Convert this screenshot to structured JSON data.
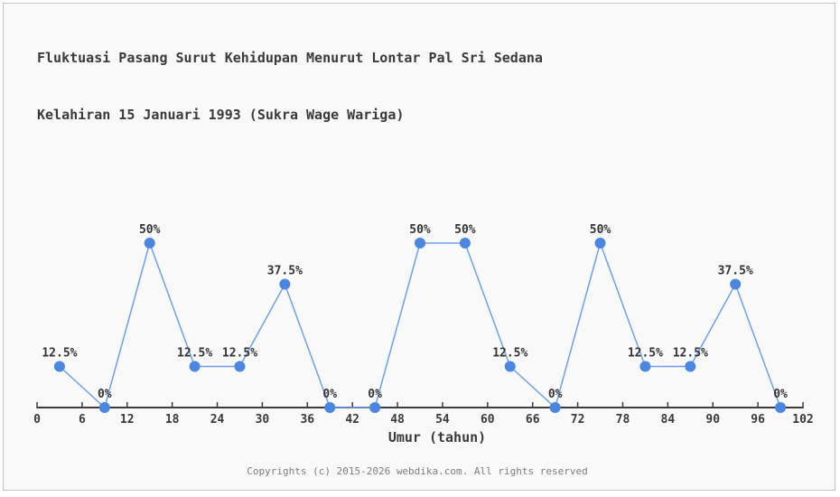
{
  "header": {
    "line1": "Fluktuasi Pasang Surut Kehidupan Menurut Lontar Pal Sri Sedana",
    "line2": "Kelahiran 15 Januari 1993 (Sukra Wage Wariga)"
  },
  "footer": {
    "copyright": "Copyrights (c) 2015-2026 webdika.com. All rights reserved"
  },
  "chart_data": {
    "type": "line",
    "title": "Fluktuasi Pasang Surut Kehidupan Menurut Lontar Pal Sri Sedana Kelahiran 15 Januari 1993 (Sukra Wage Wariga)",
    "x": [
      3,
      9,
      15,
      21,
      27,
      33,
      39,
      45,
      51,
      57,
      63,
      69,
      75,
      81,
      87,
      93,
      99
    ],
    "values": [
      12.5,
      0,
      50,
      12.5,
      12.5,
      37.5,
      0,
      0,
      50,
      50,
      12.5,
      0,
      50,
      12.5,
      12.5,
      37.5,
      0
    ],
    "point_labels": [
      "12.5%",
      "0%",
      "50%",
      "12.5%",
      "12.5%",
      "37.5%",
      "0%",
      "0%",
      "50%",
      "50%",
      "12.5%",
      "0%",
      "50%",
      "12.5%",
      "12.5%",
      "37.5%",
      "0%"
    ],
    "xlabel": "Umur (tahun)",
    "ylabel": "",
    "xticks": [
      0,
      6,
      12,
      18,
      24,
      30,
      36,
      42,
      48,
      54,
      60,
      66,
      72,
      78,
      84,
      90,
      96,
      102
    ],
    "xlim": [
      0,
      102
    ],
    "ylim": [
      0,
      100
    ],
    "grid": false,
    "legend": false,
    "colors": {
      "line": "#6f9fe8",
      "marker": "#4b86e1",
      "axis": "#3c3c3c",
      "tick_text": "#3a3a3a",
      "background": "#f9f9f9"
    }
  }
}
